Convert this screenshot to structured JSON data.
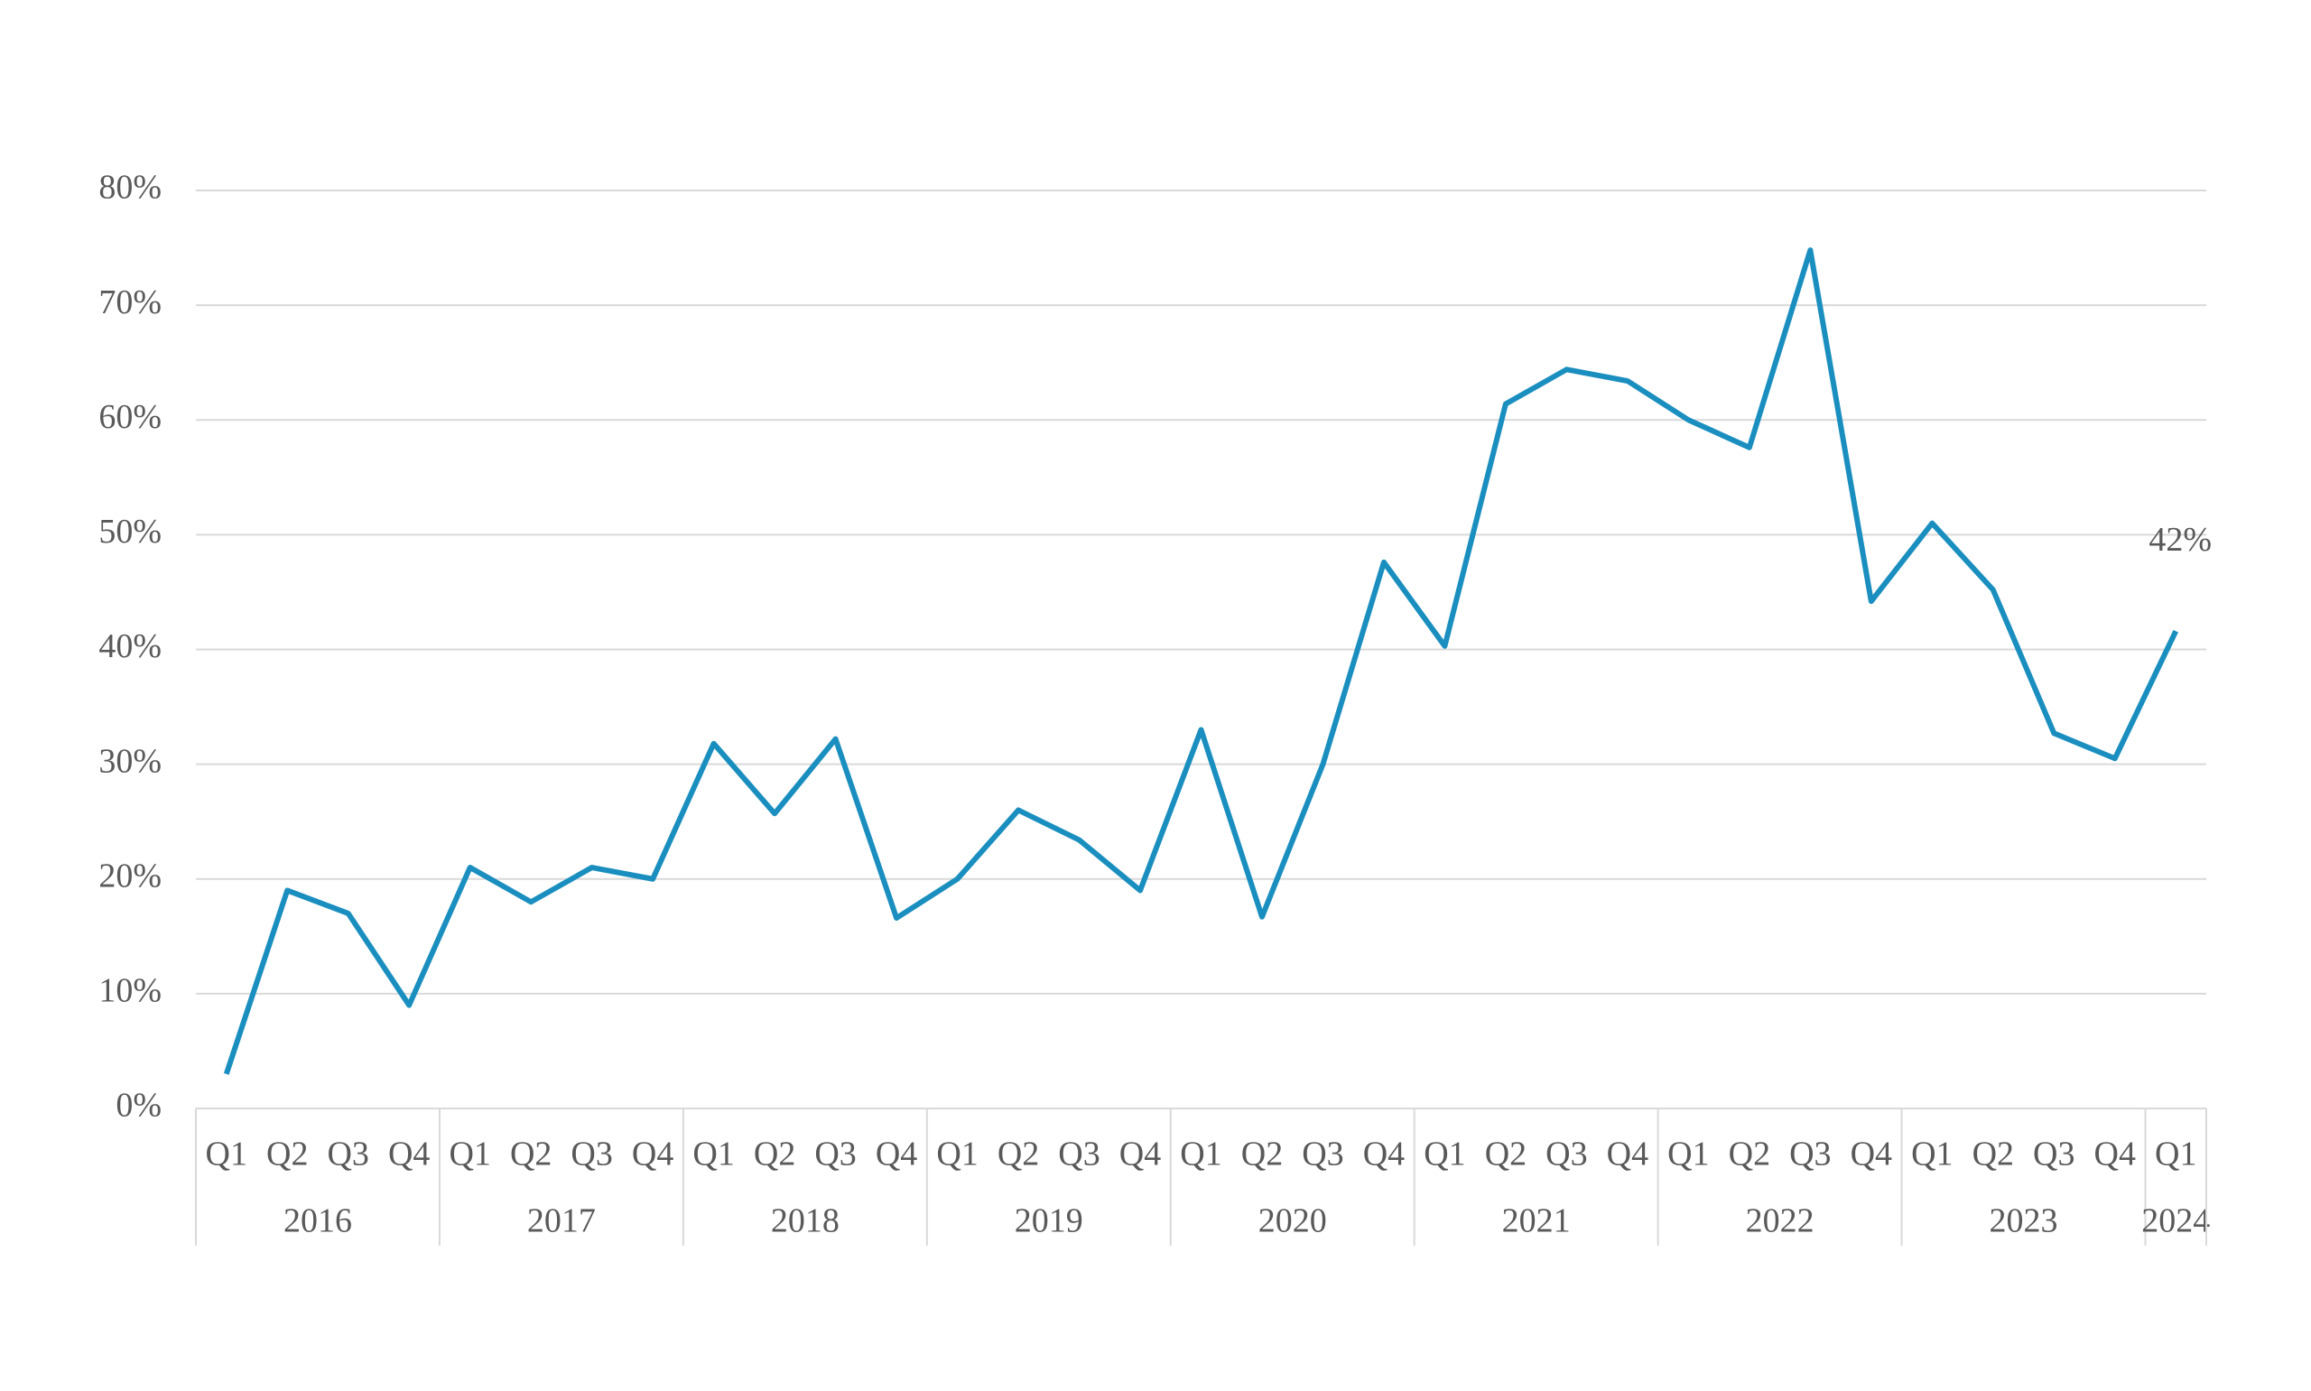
{
  "chart_data": {
    "type": "line",
    "groups": [
      {
        "label": "2016",
        "categories": [
          "Q1",
          "Q2",
          "Q3",
          "Q4"
        ]
      },
      {
        "label": "2017",
        "categories": [
          "Q1",
          "Q2",
          "Q3",
          "Q4"
        ]
      },
      {
        "label": "2018",
        "categories": [
          "Q1",
          "Q2",
          "Q3",
          "Q4"
        ]
      },
      {
        "label": "2019",
        "categories": [
          "Q1",
          "Q2",
          "Q3",
          "Q4"
        ]
      },
      {
        "label": "2020",
        "categories": [
          "Q1",
          "Q2",
          "Q3",
          "Q4"
        ]
      },
      {
        "label": "2021",
        "categories": [
          "Q1",
          "Q2",
          "Q3",
          "Q4"
        ]
      },
      {
        "label": "2022",
        "categories": [
          "Q1",
          "Q2",
          "Q3",
          "Q4"
        ]
      },
      {
        "label": "2023",
        "categories": [
          "Q1",
          "Q2",
          "Q3",
          "Q4"
        ]
      },
      {
        "label": "2024",
        "categories": [
          "Q1"
        ]
      }
    ],
    "series": [
      {
        "color": "#1a8fbf",
        "values": [
          3.0,
          19.0,
          17.0,
          9.0,
          21.0,
          18.0,
          21.0,
          20.0,
          31.8,
          25.7,
          32.2,
          16.6,
          20.0,
          26.0,
          23.4,
          19.0,
          33.0,
          16.7,
          30.0,
          47.6,
          40.3,
          61.4,
          64.4,
          63.4,
          60.0,
          57.6,
          74.8,
          44.2,
          51.0,
          45.2,
          32.7,
          30.5,
          41.6
        ],
        "value_labels": [
          null,
          null,
          null,
          null,
          null,
          null,
          null,
          null,
          null,
          null,
          null,
          null,
          null,
          null,
          null,
          null,
          null,
          null,
          null,
          null,
          null,
          null,
          null,
          null,
          null,
          null,
          null,
          null,
          null,
          null,
          null,
          null,
          "42%"
        ]
      }
    ],
    "ylim": [
      0,
      80
    ],
    "yticks": [
      {
        "value": 0,
        "label": "0%"
      },
      {
        "value": 10,
        "label": "10%"
      },
      {
        "value": 20,
        "label": "20%"
      },
      {
        "value": 30,
        "label": "30%"
      },
      {
        "value": 40,
        "label": "40%"
      },
      {
        "value": 50,
        "label": "50%"
      },
      {
        "value": 60,
        "label": "60%"
      },
      {
        "value": 70,
        "label": "70%"
      },
      {
        "value": 80,
        "label": "80%"
      }
    ],
    "grid": true
  }
}
